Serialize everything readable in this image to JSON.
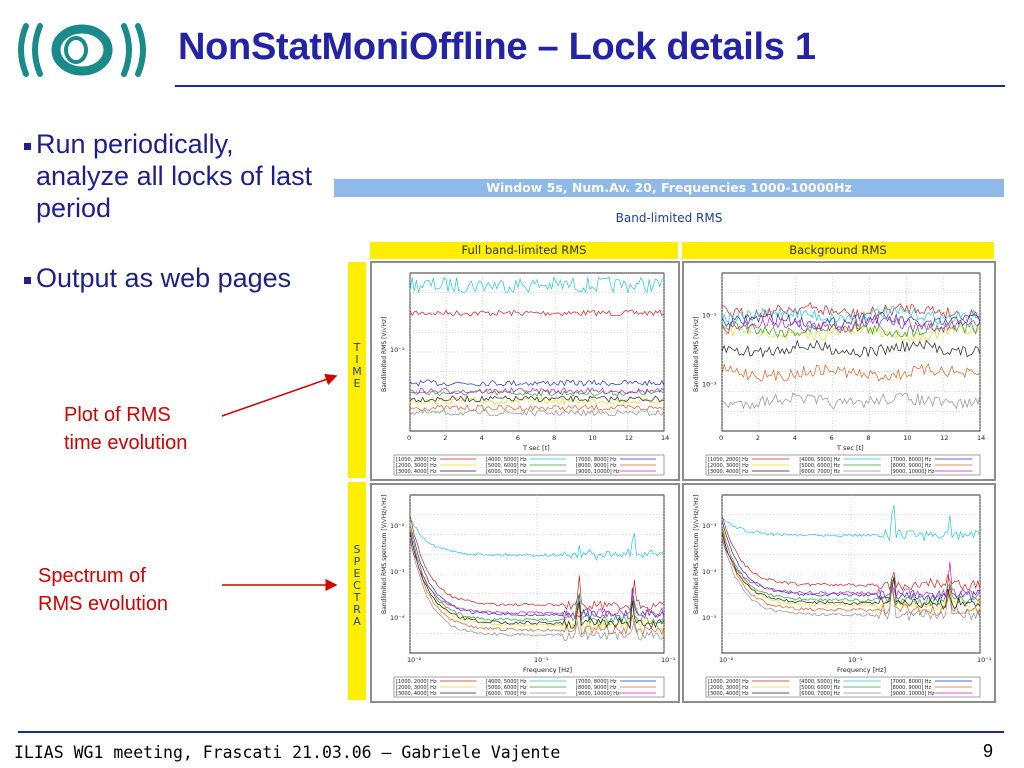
{
  "slide": {
    "title": "NonStatMoniOffline – Lock details 1",
    "bullets": [
      "Run periodically, analyze all locks of last period",
      "Output as web pages"
    ],
    "annotations": {
      "time_note_line1": "Plot of RMS",
      "time_note_line2": "time evolution",
      "spectrum_note_line1": "Spectrum of",
      "spectrum_note_line2": "RMS evolution"
    },
    "footer": "ILIAS WG1 meeting, Frascati 21.03.06 – Gabriele Vajente",
    "page_number": "9",
    "logo": "virgo-logo"
  },
  "report": {
    "banner": "Window 5s, Num.Av. 20, Frequencies 1000-10000Hz",
    "subtitle": "Band-limited RMS",
    "col_full": "Full band-limited RMS",
    "col_background": "Background RMS",
    "row_time": [
      "T",
      "I",
      "M",
      "E"
    ],
    "row_spectra": [
      "S",
      "P",
      "E",
      "C",
      "T",
      "R",
      "A"
    ],
    "time_xlabel": "T sec [t]",
    "time_ylabel": "Bandlimited RMS [V/√Hz]",
    "freq_xlabel": "Frequency [Hz]",
    "freq_ylabel": "Bandlimited RMS spectrum [V/√Hz/√Hz]",
    "time_xticks": [
      "0",
      "2",
      "4",
      "6",
      "8",
      "10",
      "12",
      "14"
    ],
    "time_full_yticks": [
      "10⁻¹"
    ],
    "time_bg_yticks": [
      "10⁻¹",
      "10⁻³"
    ],
    "freq_xticks": [
      "10⁻²",
      "10⁻¹",
      "10⁻¹"
    ],
    "freq_full_yticks": [
      "10⁻²",
      "10⁻³",
      "10⁻⁴"
    ],
    "freq_bg_yticks": [
      "10⁻³",
      "10⁻⁴",
      "10⁻⁵"
    ],
    "legend": [
      "[1000, 2000] Hz",
      "[4000, 5000] Hz",
      "[7000, 8000] Hz",
      "[2000, 3000] Hz",
      "[5000, 6000] Hz",
      "[8000, 9000] Hz",
      "[3000, 4000] Hz",
      "[6000, 7000] Hz",
      "[9000, 10000] Hz"
    ],
    "series_colors": [
      "#d42020",
      "#22c8d8",
      "#2030d0",
      "#e8e020",
      "#30a030",
      "#e06020",
      "#202020",
      "#909090",
      "#c020c0"
    ]
  }
}
